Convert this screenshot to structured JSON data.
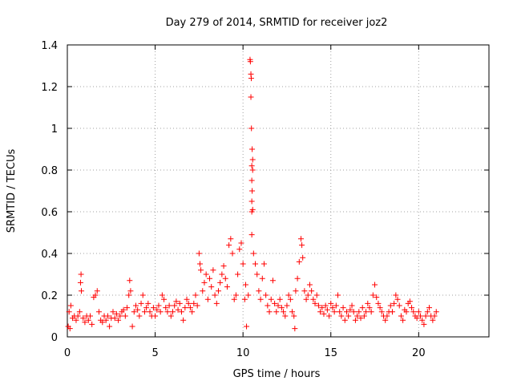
{
  "chart_data": {
    "type": "scatter",
    "title": "Day 279 of 2014, SRMTID for receiver joz2",
    "xlabel": "GPS time / hours",
    "ylabel": "SRMTID / TECUs",
    "xlim": [
      0,
      24
    ],
    "ylim": [
      0,
      1.4
    ],
    "xticks": [
      0,
      5,
      10,
      15,
      20
    ],
    "xtick_labels": [
      "0",
      "5",
      "10",
      "15",
      "20"
    ],
    "yticks": [
      0,
      0.2,
      0.4,
      0.6,
      0.8,
      1.0,
      1.2,
      1.4
    ],
    "ytick_labels": [
      "0",
      "0.2",
      "0.4",
      "0.6",
      "0.8",
      "1",
      "1.2",
      "1.4"
    ],
    "grid": true,
    "marker": "+",
    "color": "#ff0000",
    "series": [
      {
        "name": "joz2",
        "points": [
          [
            0.05,
            0.05
          ],
          [
            0.1,
            0.12
          ],
          [
            0.15,
            0.04
          ],
          [
            0.2,
            0.15
          ],
          [
            0.3,
            0.09
          ],
          [
            0.4,
            0.1
          ],
          [
            0.5,
            0.08
          ],
          [
            0.6,
            0.1
          ],
          [
            0.7,
            0.12
          ],
          [
            0.75,
            0.26
          ],
          [
            0.78,
            0.3
          ],
          [
            0.8,
            0.22
          ],
          [
            0.9,
            0.09
          ],
          [
            1.0,
            0.07
          ],
          [
            1.1,
            0.1
          ],
          [
            1.2,
            0.08
          ],
          [
            1.3,
            0.1
          ],
          [
            1.4,
            0.06
          ],
          [
            1.5,
            0.19
          ],
          [
            1.6,
            0.2
          ],
          [
            1.7,
            0.22
          ],
          [
            1.8,
            0.12
          ],
          [
            1.9,
            0.08
          ],
          [
            2.0,
            0.07
          ],
          [
            2.1,
            0.1
          ],
          [
            2.2,
            0.08
          ],
          [
            2.3,
            0.1
          ],
          [
            2.4,
            0.05
          ],
          [
            2.5,
            0.09
          ],
          [
            2.6,
            0.12
          ],
          [
            2.7,
            0.09
          ],
          [
            2.8,
            0.11
          ],
          [
            2.9,
            0.08
          ],
          [
            3.0,
            0.1
          ],
          [
            3.1,
            0.12
          ],
          [
            3.2,
            0.13
          ],
          [
            3.3,
            0.1
          ],
          [
            3.4,
            0.14
          ],
          [
            3.5,
            0.2
          ],
          [
            3.55,
            0.27
          ],
          [
            3.6,
            0.22
          ],
          [
            3.7,
            0.05
          ],
          [
            3.8,
            0.12
          ],
          [
            3.9,
            0.15
          ],
          [
            4.0,
            0.13
          ],
          [
            4.1,
            0.1
          ],
          [
            4.2,
            0.16
          ],
          [
            4.3,
            0.2
          ],
          [
            4.4,
            0.12
          ],
          [
            4.5,
            0.14
          ],
          [
            4.6,
            0.16
          ],
          [
            4.7,
            0.12
          ],
          [
            4.8,
            0.1
          ],
          [
            4.9,
            0.14
          ],
          [
            5.0,
            0.1
          ],
          [
            5.1,
            0.13
          ],
          [
            5.2,
            0.15
          ],
          [
            5.3,
            0.12
          ],
          [
            5.4,
            0.2
          ],
          [
            5.5,
            0.18
          ],
          [
            5.6,
            0.14
          ],
          [
            5.7,
            0.12
          ],
          [
            5.8,
            0.15
          ],
          [
            5.9,
            0.1
          ],
          [
            6.0,
            0.12
          ],
          [
            6.1,
            0.15
          ],
          [
            6.2,
            0.17
          ],
          [
            6.3,
            0.13
          ],
          [
            6.4,
            0.16
          ],
          [
            6.5,
            0.12
          ],
          [
            6.6,
            0.08
          ],
          [
            6.7,
            0.14
          ],
          [
            6.8,
            0.18
          ],
          [
            6.9,
            0.16
          ],
          [
            7.0,
            0.14
          ],
          [
            7.1,
            0.12
          ],
          [
            7.2,
            0.16
          ],
          [
            7.3,
            0.2
          ],
          [
            7.4,
            0.15
          ],
          [
            7.5,
            0.4
          ],
          [
            7.55,
            0.35
          ],
          [
            7.6,
            0.32
          ],
          [
            7.7,
            0.22
          ],
          [
            7.8,
            0.26
          ],
          [
            7.9,
            0.3
          ],
          [
            8.0,
            0.18
          ],
          [
            8.1,
            0.28
          ],
          [
            8.2,
            0.24
          ],
          [
            8.3,
            0.32
          ],
          [
            8.4,
            0.2
          ],
          [
            8.5,
            0.16
          ],
          [
            8.6,
            0.22
          ],
          [
            8.7,
            0.26
          ],
          [
            8.8,
            0.3
          ],
          [
            8.9,
            0.34
          ],
          [
            9.0,
            0.28
          ],
          [
            9.1,
            0.24
          ],
          [
            9.2,
            0.44
          ],
          [
            9.3,
            0.47
          ],
          [
            9.4,
            0.4
          ],
          [
            9.5,
            0.18
          ],
          [
            9.6,
            0.2
          ],
          [
            9.7,
            0.3
          ],
          [
            9.8,
            0.42
          ],
          [
            9.9,
            0.45
          ],
          [
            10.0,
            0.35
          ],
          [
            10.1,
            0.18
          ],
          [
            10.15,
            0.25
          ],
          [
            10.2,
            0.05
          ],
          [
            10.3,
            0.2
          ],
          [
            10.4,
            1.33
          ],
          [
            10.42,
            1.32
          ],
          [
            10.45,
            1.26
          ],
          [
            10.47,
            1.24
          ],
          [
            10.45,
            1.15
          ],
          [
            10.48,
            1.0
          ],
          [
            10.52,
            0.9
          ],
          [
            10.55,
            0.85
          ],
          [
            10.5,
            0.82
          ],
          [
            10.55,
            0.8
          ],
          [
            10.5,
            0.75
          ],
          [
            10.52,
            0.7
          ],
          [
            10.5,
            0.65
          ],
          [
            10.55,
            0.61
          ],
          [
            10.5,
            0.6
          ],
          [
            10.5,
            0.49
          ],
          [
            10.6,
            0.4
          ],
          [
            10.7,
            0.35
          ],
          [
            10.8,
            0.3
          ],
          [
            10.9,
            0.22
          ],
          [
            11.0,
            0.18
          ],
          [
            11.1,
            0.28
          ],
          [
            11.2,
            0.35
          ],
          [
            11.3,
            0.2
          ],
          [
            11.4,
            0.15
          ],
          [
            11.5,
            0.12
          ],
          [
            11.6,
            0.18
          ],
          [
            11.7,
            0.27
          ],
          [
            11.8,
            0.16
          ],
          [
            11.9,
            0.12
          ],
          [
            12.0,
            0.15
          ],
          [
            12.1,
            0.18
          ],
          [
            12.2,
            0.14
          ],
          [
            12.3,
            0.12
          ],
          [
            12.4,
            0.1
          ],
          [
            12.5,
            0.15
          ],
          [
            12.6,
            0.2
          ],
          [
            12.7,
            0.18
          ],
          [
            12.8,
            0.12
          ],
          [
            12.9,
            0.1
          ],
          [
            12.95,
            0.04
          ],
          [
            13.0,
            0.22
          ],
          [
            13.1,
            0.28
          ],
          [
            13.2,
            0.36
          ],
          [
            13.3,
            0.47
          ],
          [
            13.35,
            0.44
          ],
          [
            13.4,
            0.38
          ],
          [
            13.5,
            0.22
          ],
          [
            13.6,
            0.18
          ],
          [
            13.7,
            0.2
          ],
          [
            13.8,
            0.25
          ],
          [
            13.9,
            0.22
          ],
          [
            14.0,
            0.18
          ],
          [
            14.1,
            0.16
          ],
          [
            14.2,
            0.2
          ],
          [
            14.3,
            0.15
          ],
          [
            14.4,
            0.12
          ],
          [
            14.5,
            0.14
          ],
          [
            14.6,
            0.11
          ],
          [
            14.7,
            0.15
          ],
          [
            14.8,
            0.13
          ],
          [
            14.9,
            0.1
          ],
          [
            15.0,
            0.16
          ],
          [
            15.1,
            0.14
          ],
          [
            15.2,
            0.12
          ],
          [
            15.3,
            0.15
          ],
          [
            15.4,
            0.2
          ],
          [
            15.5,
            0.12
          ],
          [
            15.6,
            0.1
          ],
          [
            15.7,
            0.14
          ],
          [
            15.8,
            0.08
          ],
          [
            15.9,
            0.12
          ],
          [
            16.0,
            0.1
          ],
          [
            16.1,
            0.13
          ],
          [
            16.2,
            0.15
          ],
          [
            16.3,
            0.12
          ],
          [
            16.4,
            0.08
          ],
          [
            16.5,
            0.1
          ],
          [
            16.6,
            0.12
          ],
          [
            16.7,
            0.09
          ],
          [
            16.8,
            0.14
          ],
          [
            16.9,
            0.1
          ],
          [
            17.0,
            0.12
          ],
          [
            17.1,
            0.16
          ],
          [
            17.2,
            0.14
          ],
          [
            17.3,
            0.12
          ],
          [
            17.4,
            0.2
          ],
          [
            17.5,
            0.25
          ],
          [
            17.6,
            0.19
          ],
          [
            17.7,
            0.16
          ],
          [
            17.8,
            0.14
          ],
          [
            17.9,
            0.12
          ],
          [
            18.0,
            0.1
          ],
          [
            18.1,
            0.08
          ],
          [
            18.2,
            0.1
          ],
          [
            18.3,
            0.12
          ],
          [
            18.4,
            0.15
          ],
          [
            18.5,
            0.12
          ],
          [
            18.6,
            0.16
          ],
          [
            18.7,
            0.2
          ],
          [
            18.8,
            0.18
          ],
          [
            18.9,
            0.15
          ],
          [
            19.0,
            0.1
          ],
          [
            19.1,
            0.08
          ],
          [
            19.2,
            0.13
          ],
          [
            19.3,
            0.12
          ],
          [
            19.4,
            0.16
          ],
          [
            19.5,
            0.17
          ],
          [
            19.6,
            0.14
          ],
          [
            19.7,
            0.12
          ],
          [
            19.8,
            0.1
          ],
          [
            19.9,
            0.09
          ],
          [
            20.0,
            0.12
          ],
          [
            20.1,
            0.1
          ],
          [
            20.2,
            0.08
          ],
          [
            20.3,
            0.06
          ],
          [
            20.4,
            0.1
          ],
          [
            20.5,
            0.12
          ],
          [
            20.6,
            0.14
          ],
          [
            20.7,
            0.1
          ],
          [
            20.8,
            0.08
          ],
          [
            20.9,
            0.1
          ],
          [
            21.0,
            0.12
          ]
        ]
      }
    ]
  }
}
